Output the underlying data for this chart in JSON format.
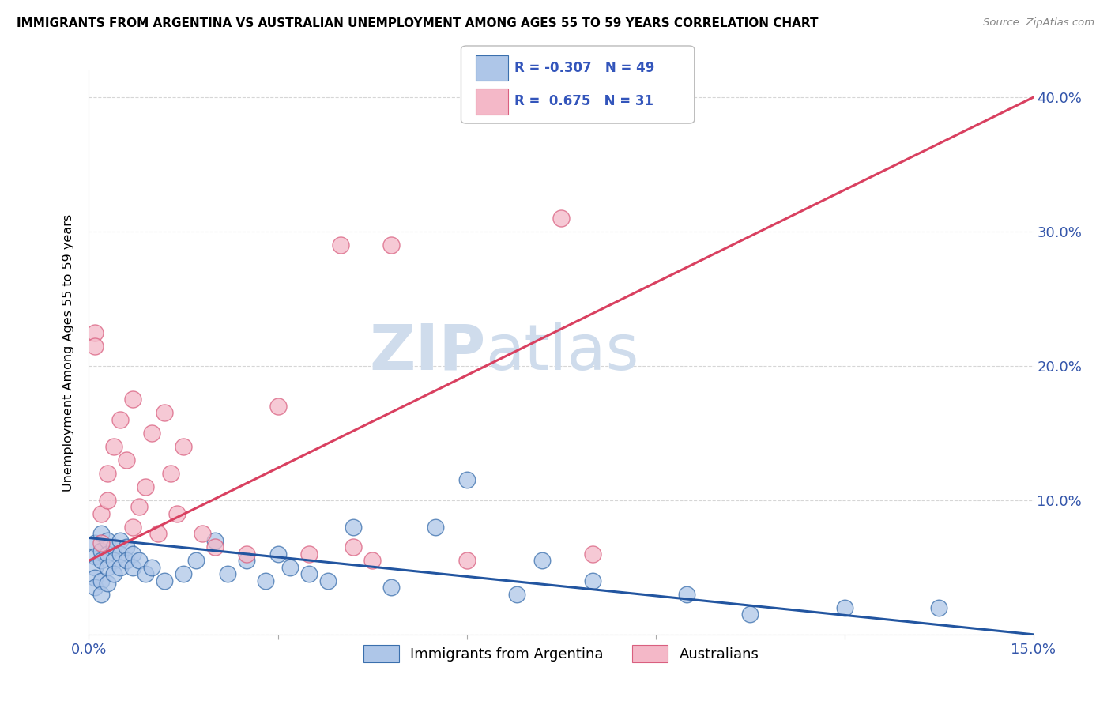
{
  "title": "IMMIGRANTS FROM ARGENTINA VS AUSTRALIAN UNEMPLOYMENT AMONG AGES 55 TO 59 YEARS CORRELATION CHART",
  "source": "Source: ZipAtlas.com",
  "ylabel": "Unemployment Among Ages 55 to 59 years",
  "xlim": [
    0.0,
    0.15
  ],
  "ylim": [
    0.0,
    0.42
  ],
  "blue_R": -0.307,
  "blue_N": 49,
  "pink_R": 0.675,
  "pink_N": 31,
  "blue_color": "#aec6e8",
  "blue_edge_color": "#3a6fad",
  "pink_color": "#f4b8c8",
  "pink_edge_color": "#d95f7f",
  "blue_line_color": "#2255a0",
  "pink_line_color": "#d94060",
  "watermark_color": "#cfdcec",
  "blue_scatter": [
    [
      0.001,
      0.068
    ],
    [
      0.001,
      0.058
    ],
    [
      0.001,
      0.05
    ],
    [
      0.001,
      0.042
    ],
    [
      0.001,
      0.035
    ],
    [
      0.002,
      0.075
    ],
    [
      0.002,
      0.062
    ],
    [
      0.002,
      0.055
    ],
    [
      0.002,
      0.04
    ],
    [
      0.002,
      0.03
    ],
    [
      0.003,
      0.07
    ],
    [
      0.003,
      0.06
    ],
    [
      0.003,
      0.05
    ],
    [
      0.003,
      0.038
    ],
    [
      0.004,
      0.065
    ],
    [
      0.004,
      0.055
    ],
    [
      0.004,
      0.045
    ],
    [
      0.005,
      0.07
    ],
    [
      0.005,
      0.06
    ],
    [
      0.005,
      0.05
    ],
    [
      0.006,
      0.065
    ],
    [
      0.006,
      0.055
    ],
    [
      0.007,
      0.06
    ],
    [
      0.007,
      0.05
    ],
    [
      0.008,
      0.055
    ],
    [
      0.009,
      0.045
    ],
    [
      0.01,
      0.05
    ],
    [
      0.012,
      0.04
    ],
    [
      0.015,
      0.045
    ],
    [
      0.017,
      0.055
    ],
    [
      0.02,
      0.07
    ],
    [
      0.022,
      0.045
    ],
    [
      0.025,
      0.055
    ],
    [
      0.028,
      0.04
    ],
    [
      0.03,
      0.06
    ],
    [
      0.032,
      0.05
    ],
    [
      0.035,
      0.045
    ],
    [
      0.038,
      0.04
    ],
    [
      0.042,
      0.08
    ],
    [
      0.048,
      0.035
    ],
    [
      0.055,
      0.08
    ],
    [
      0.06,
      0.115
    ],
    [
      0.068,
      0.03
    ],
    [
      0.072,
      0.055
    ],
    [
      0.08,
      0.04
    ],
    [
      0.095,
      0.03
    ],
    [
      0.105,
      0.015
    ],
    [
      0.12,
      0.02
    ],
    [
      0.135,
      0.02
    ]
  ],
  "pink_scatter": [
    [
      0.001,
      0.225
    ],
    [
      0.001,
      0.215
    ],
    [
      0.002,
      0.068
    ],
    [
      0.002,
      0.09
    ],
    [
      0.003,
      0.12
    ],
    [
      0.003,
      0.1
    ],
    [
      0.004,
      0.14
    ],
    [
      0.005,
      0.16
    ],
    [
      0.006,
      0.13
    ],
    [
      0.007,
      0.08
    ],
    [
      0.007,
      0.175
    ],
    [
      0.008,
      0.095
    ],
    [
      0.009,
      0.11
    ],
    [
      0.01,
      0.15
    ],
    [
      0.011,
      0.075
    ],
    [
      0.012,
      0.165
    ],
    [
      0.013,
      0.12
    ],
    [
      0.014,
      0.09
    ],
    [
      0.015,
      0.14
    ],
    [
      0.018,
      0.075
    ],
    [
      0.02,
      0.065
    ],
    [
      0.025,
      0.06
    ],
    [
      0.03,
      0.17
    ],
    [
      0.035,
      0.06
    ],
    [
      0.04,
      0.29
    ],
    [
      0.042,
      0.065
    ],
    [
      0.045,
      0.055
    ],
    [
      0.048,
      0.29
    ],
    [
      0.06,
      0.055
    ],
    [
      0.075,
      0.31
    ],
    [
      0.08,
      0.06
    ]
  ],
  "blue_trend_x": [
    0.0,
    0.15
  ],
  "blue_trend_y": [
    0.072,
    0.0
  ],
  "pink_trend_x": [
    0.0,
    0.15
  ],
  "pink_trend_y": [
    0.055,
    0.4
  ]
}
